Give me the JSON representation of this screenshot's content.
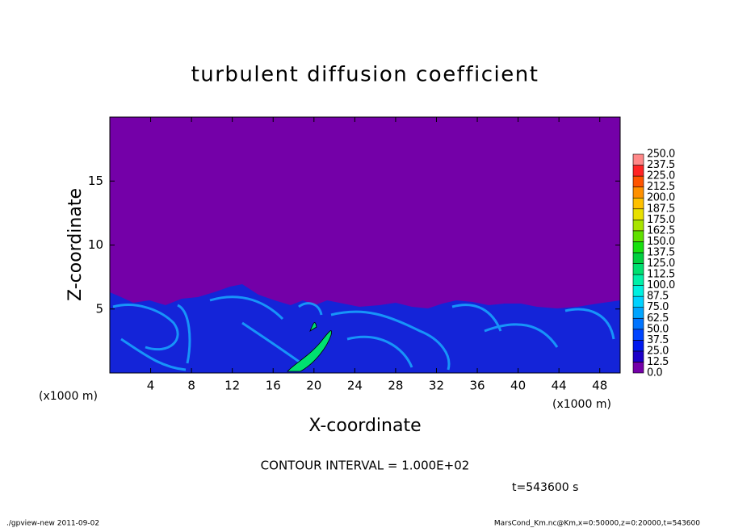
{
  "chart_data": {
    "type": "contour",
    "title": "turbulent diffusion coefficient",
    "xlabel": "X-coordinate",
    "ylabel": "Z-coordinate",
    "x_unit_label": "(x1000 m)",
    "xlim": [
      0,
      50
    ],
    "xticks": [
      4,
      8,
      12,
      16,
      20,
      24,
      28,
      32,
      36,
      40,
      44,
      48
    ],
    "ylim": [
      0,
      20
    ],
    "yticks": [
      5,
      10,
      15
    ],
    "colorbar": {
      "levels": [
        {
          "value": 0,
          "label": "0.0"
        },
        {
          "value": 12.5,
          "label": "12.5"
        },
        {
          "value": 25,
          "label": "25.0"
        },
        {
          "value": 37.5,
          "label": "37.5"
        },
        {
          "value": 50,
          "label": "50.0"
        },
        {
          "value": 62.5,
          "label": "62.5"
        },
        {
          "value": 75,
          "label": "75.0"
        },
        {
          "value": 87.5,
          "label": "87.5"
        },
        {
          "value": 100,
          "label": "100.0"
        },
        {
          "value": 112.5,
          "label": "112.5"
        },
        {
          "value": 125,
          "label": "125.0"
        },
        {
          "value": 137.5,
          "label": "137.5"
        },
        {
          "value": 150,
          "label": "150.0"
        },
        {
          "value": 162.5,
          "label": "162.5"
        },
        {
          "value": 175,
          "label": "175.0"
        },
        {
          "value": 187.5,
          "label": "187.5"
        },
        {
          "value": 200,
          "label": "200.0"
        },
        {
          "value": 212.5,
          "label": "212.5"
        },
        {
          "value": 225,
          "label": "225.0"
        },
        {
          "value": 237.5,
          "label": "237.5"
        },
        {
          "value": 250,
          "label": "250.0"
        }
      ],
      "colors": [
        "#7400a8",
        "#1c00c8",
        "#0018ee",
        "#0044ff",
        "#0074ff",
        "#00a4ff",
        "#00d2ff",
        "#00f0e0",
        "#00f0a8",
        "#00e070",
        "#00d040",
        "#18e010",
        "#60e000",
        "#a8e400",
        "#e8e000",
        "#ffc000",
        "#ff9000",
        "#ff5400",
        "#ff2424",
        "#ff8888"
      ]
    },
    "contour_interval": "CONTOUR INTERVAL = 1.000E+02",
    "time_label": "t=543600 s",
    "footer_left": "./gpview-new  2011-09-02",
    "footer_right": "MarsCond_Km.nc@Km,x=0:50000,z=0:20000,t=543600"
  }
}
